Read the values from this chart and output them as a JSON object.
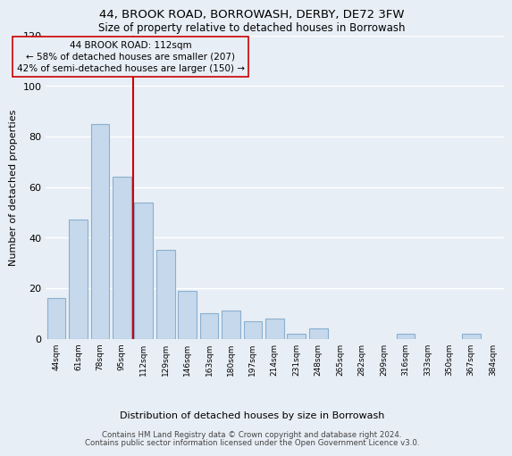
{
  "title": "44, BROOK ROAD, BORROWASH, DERBY, DE72 3FW",
  "subtitle": "Size of property relative to detached houses in Borrowash",
  "xlabel": "Distribution of detached houses by size in Borrowash",
  "ylabel": "Number of detached properties",
  "bar_labels": [
    "44sqm",
    "61sqm",
    "78sqm",
    "95sqm",
    "112sqm",
    "129sqm",
    "146sqm",
    "163sqm",
    "180sqm",
    "197sqm",
    "214sqm",
    "231sqm",
    "248sqm",
    "265sqm",
    "282sqm",
    "299sqm",
    "316sqm",
    "333sqm",
    "350sqm",
    "367sqm",
    "384sqm"
  ],
  "bar_values": [
    16,
    47,
    85,
    64,
    54,
    35,
    19,
    10,
    11,
    7,
    8,
    2,
    4,
    0,
    0,
    0,
    2,
    0,
    0,
    2,
    0
  ],
  "bar_color": "#c5d8ec",
  "bar_edge_color": "#8ab0d0",
  "vline_color": "#cc0000",
  "annotation_title": "44 BROOK ROAD: 112sqm",
  "annotation_line1": "← 58% of detached houses are smaller (207)",
  "annotation_line2": "42% of semi-detached houses are larger (150) →",
  "ylim": [
    0,
    120
  ],
  "yticks": [
    0,
    20,
    40,
    60,
    80,
    100,
    120
  ],
  "footer1": "Contains HM Land Registry data © Crown copyright and database right 2024.",
  "footer2": "Contains public sector information licensed under the Open Government Licence v3.0.",
  "background_color": "#e8eef5"
}
